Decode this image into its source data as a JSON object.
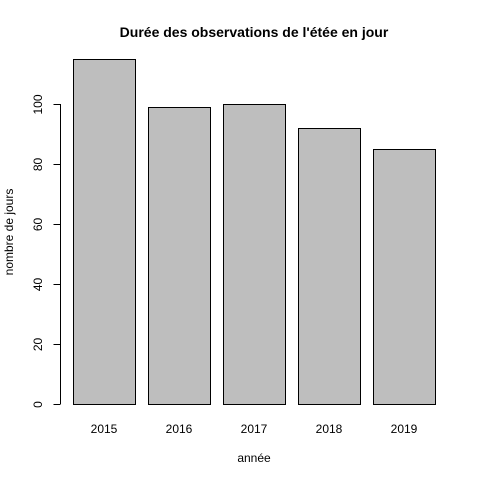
{
  "chart_data": {
    "type": "bar",
    "title": "Durée des observations de l'étée en jour",
    "xlabel": "année",
    "ylabel": "nombre de jours",
    "categories": [
      "2015",
      "2016",
      "2017",
      "2018",
      "2019"
    ],
    "values": [
      115,
      99,
      100,
      92,
      85
    ],
    "ylim": [
      0,
      115
    ],
    "yticks": [
      0,
      20,
      40,
      60,
      80,
      100
    ],
    "grid": false,
    "bar_color": "#bebebe",
    "bar_border_color": "#000000"
  }
}
